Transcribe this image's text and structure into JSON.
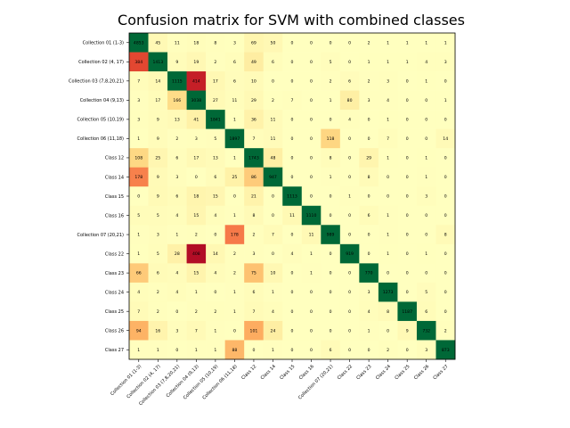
{
  "chart_data": {
    "type": "heatmap",
    "title": "Confusion matrix for SVM with combined classes",
    "row_labels": [
      "Collection 01 (1-3)",
      "Collection 02 (4, 17)",
      "Collection 03 (7,8,20,21)",
      "Collection 04 (9,13)",
      "Collection 05 (10,19)",
      "Collection 06 (11,18)",
      "Class 12",
      "Class 14",
      "Class 15",
      "Class 16",
      "Collection 07 (20,21)",
      "Class 22",
      "Class 23",
      "Class 24",
      "Class 25",
      "Class 26",
      "Class 27"
    ],
    "col_labels": [
      "Collection 01 (1-3)",
      "Collection 02 (4, 17)",
      "Collection 03 (7,8,20,21)",
      "Collection 04 (9,13)",
      "Collection 05 (10,19)",
      "Collection 06 (11,18)",
      "Class 12",
      "Class 14",
      "Class 15",
      "Class 16",
      "Collection 07 (20,21)",
      "Class 22",
      "Class 23",
      "Class 24",
      "Class 25",
      "Class 26",
      "Class 27"
    ],
    "values": [
      [
        4853,
        45,
        11,
        18,
        8,
        3,
        69,
        50,
        0,
        0,
        0,
        0,
        2,
        1,
        1,
        1,
        1
      ],
      [
        384,
        1413,
        9,
        19,
        2,
        6,
        49,
        6,
        0,
        0,
        5,
        0,
        1,
        1,
        1,
        4,
        3
      ],
      [
        7,
        14,
        1115,
        414,
        17,
        6,
        10,
        0,
        0,
        0,
        2,
        6,
        2,
        3,
        0,
        1,
        0
      ],
      [
        3,
        17,
        166,
        3038,
        27,
        11,
        29,
        2,
        7,
        0,
        1,
        80,
        3,
        4,
        0,
        0,
        1
      ],
      [
        3,
        9,
        13,
        41,
        1841,
        1,
        36,
        11,
        0,
        0,
        0,
        4,
        0,
        1,
        0,
        0,
        0
      ],
      [
        1,
        9,
        2,
        3,
        5,
        1897,
        7,
        11,
        0,
        0,
        118,
        0,
        0,
        7,
        0,
        0,
        14
      ],
      [
        108,
        25,
        6,
        17,
        13,
        1,
        1743,
        48,
        0,
        0,
        8,
        0,
        29,
        1,
        0,
        1,
        0
      ],
      [
        178,
        9,
        3,
        0,
        6,
        25,
        86,
        947,
        0,
        0,
        1,
        0,
        8,
        0,
        0,
        1,
        0
      ],
      [
        0,
        9,
        6,
        18,
        15,
        0,
        21,
        0,
        1113,
        0,
        0,
        1,
        0,
        0,
        0,
        3,
        0
      ],
      [
        5,
        5,
        4,
        15,
        4,
        1,
        8,
        0,
        11,
        1110,
        0,
        0,
        6,
        1,
        0,
        0,
        0
      ],
      [
        1,
        3,
        1,
        2,
        0,
        178,
        2,
        7,
        0,
        11,
        989,
        0,
        0,
        1,
        0,
        0,
        8
      ],
      [
        1,
        5,
        28,
        408,
        14,
        2,
        3,
        0,
        4,
        1,
        0,
        919,
        0,
        1,
        0,
        1,
        0
      ],
      [
        66,
        6,
        4,
        15,
        4,
        2,
        75,
        10,
        0,
        1,
        0,
        0,
        770,
        0,
        0,
        0,
        0
      ],
      [
        4,
        2,
        4,
        1,
        0,
        1,
        6,
        1,
        0,
        0,
        0,
        0,
        3,
        1273,
        0,
        5,
        0
      ],
      [
        7,
        2,
        0,
        2,
        2,
        1,
        7,
        4,
        0,
        0,
        0,
        0,
        4,
        8,
        1187,
        6,
        0
      ],
      [
        94,
        16,
        3,
        7,
        1,
        0,
        101,
        24,
        0,
        0,
        0,
        0,
        1,
        0,
        9,
        732,
        2
      ],
      [
        1,
        1,
        0,
        1,
        1,
        88,
        0,
        1,
        0,
        0,
        6,
        0,
        0,
        2,
        0,
        3,
        873
      ]
    ],
    "colormap": "RdYlGn-like (diagonal green, large off-diagonal red)",
    "colors": {
      "low": "#ffffbf",
      "mid_low": "#fee08b",
      "mid": "#fdae61",
      "high_off_diag": "#a50026",
      "diag": "#006837"
    },
    "grid": false,
    "legend": "none"
  }
}
